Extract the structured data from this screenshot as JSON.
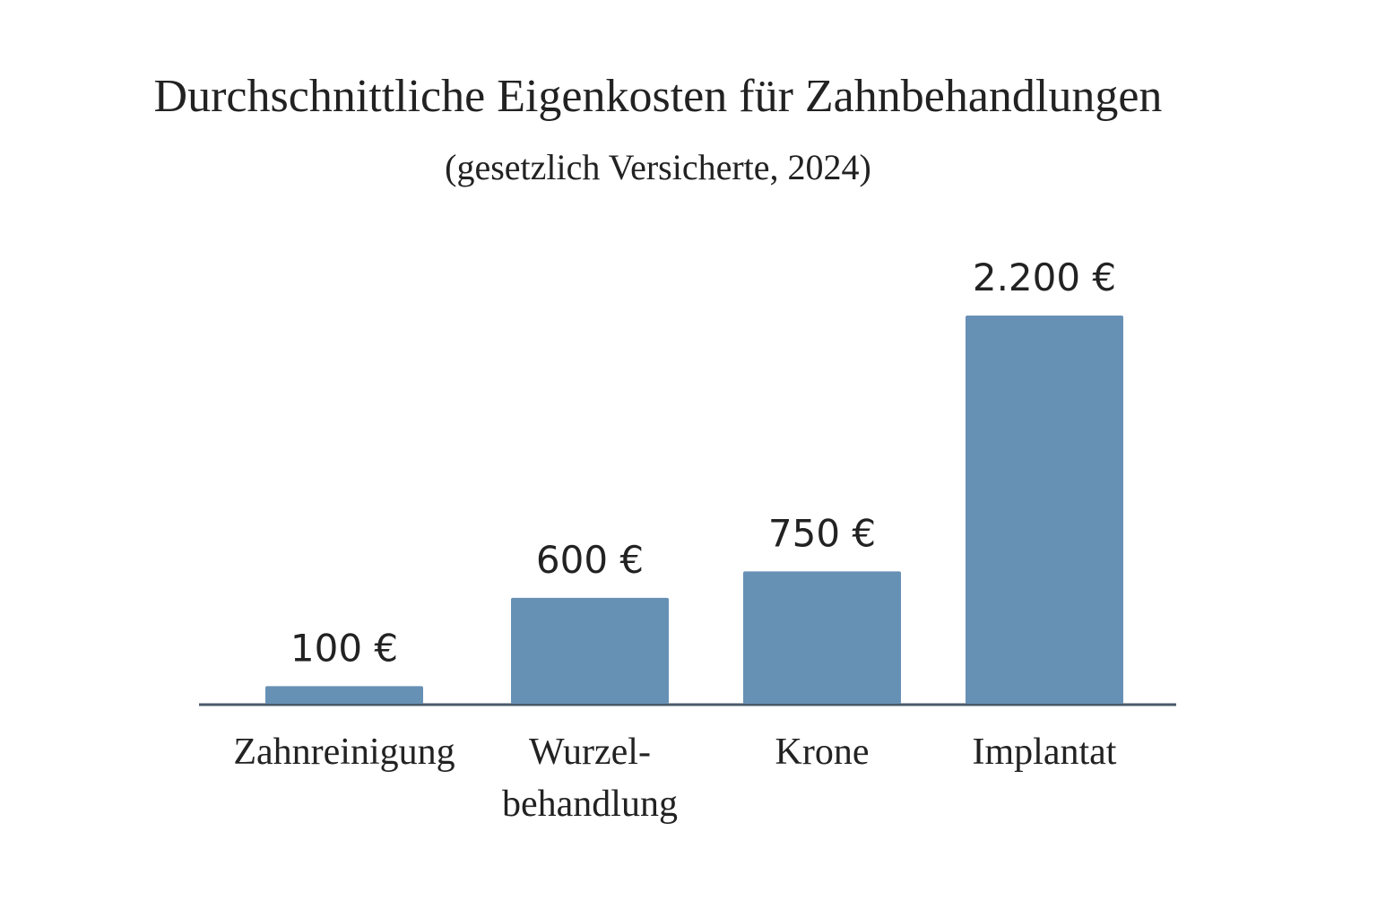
{
  "chart_data": {
    "type": "bar",
    "title": "Durchschnittliche Eigenkosten für Zahnbehandlungen",
    "subtitle": "(gesetzlich Versicherte, 2024)",
    "categories": [
      "Zahnreinigung",
      "Wurzel-behandlung",
      "Krone",
      "Implantat"
    ],
    "values": [
      100,
      600,
      750,
      2200
    ],
    "value_labels": [
      "100 €",
      "600 €",
      "750 €",
      "2.200 €"
    ],
    "color": "#6790b5"
  }
}
